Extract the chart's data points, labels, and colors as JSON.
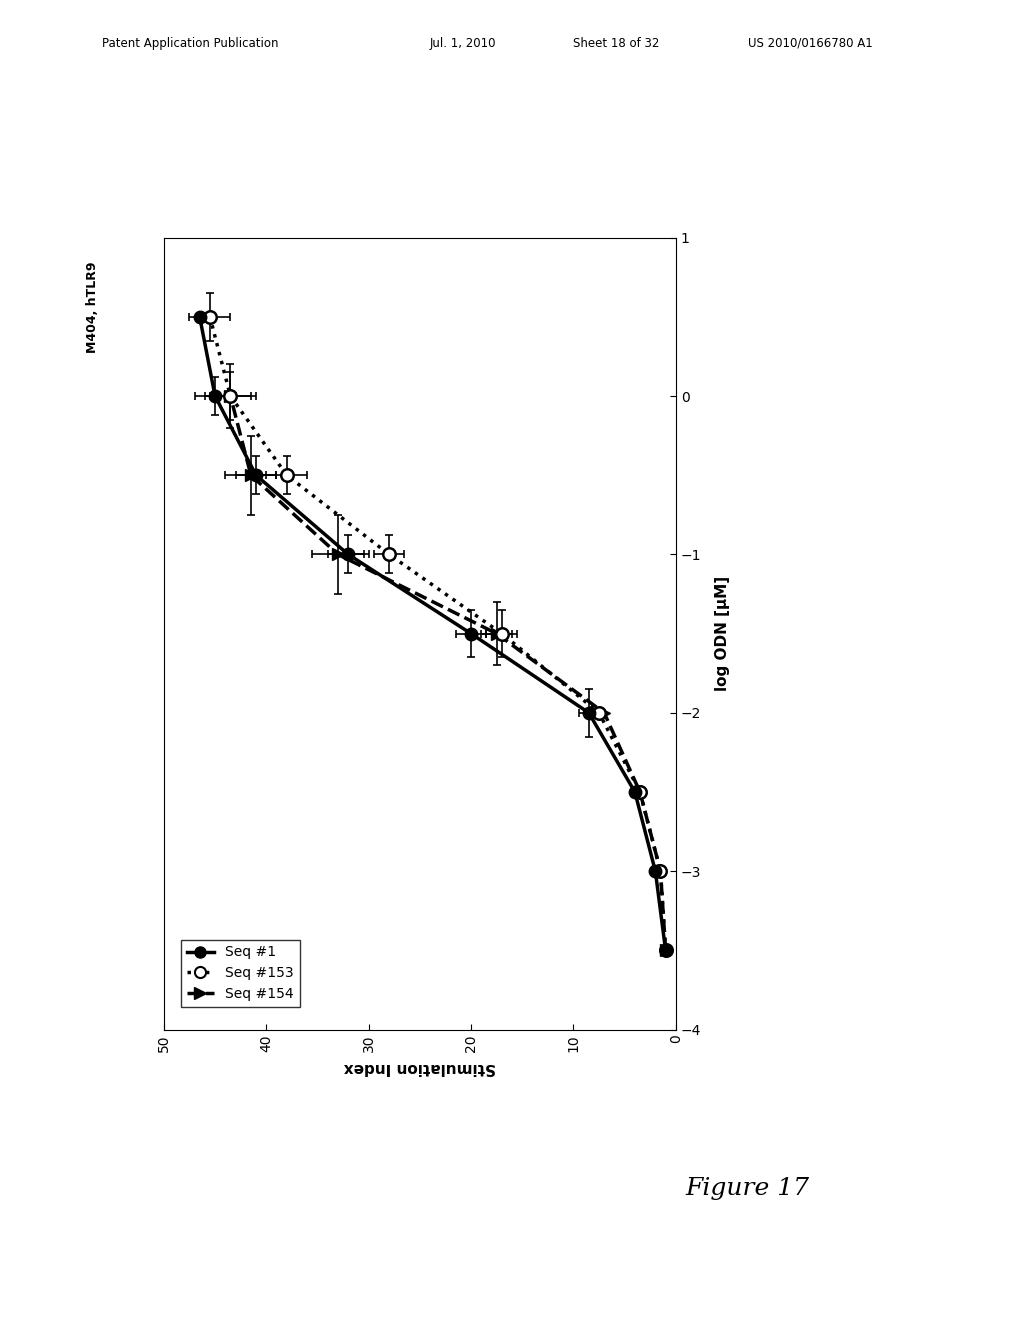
{
  "title": "M404, hTLR9",
  "xlabel_rotated": "log ODN [µM]",
  "ylabel_rotated": "Stimulation Index",
  "si_lim": [
    0,
    50
  ],
  "log_lim": [
    -4,
    1
  ],
  "si_ticks": [
    0,
    10,
    20,
    30,
    40,
    50
  ],
  "log_ticks": [
    -4,
    -3,
    -2,
    -1,
    0,
    1
  ],
  "seq1_x": [
    -3.5,
    -3.0,
    -2.5,
    -2.0,
    -1.5,
    -1.0,
    -0.5,
    0.0,
    0.5
  ],
  "seq1_y": [
    1.0,
    2.0,
    4.0,
    8.5,
    20.0,
    32.0,
    41.0,
    45.0,
    46.5
  ],
  "seq1_xerr_lo": [
    0.0,
    0.0,
    0.0,
    0.15,
    0.15,
    0.12,
    0.12,
    0.12,
    0.0
  ],
  "seq1_xerr_hi": [
    0.0,
    0.0,
    0.0,
    0.15,
    0.15,
    0.12,
    0.12,
    0.12,
    0.0
  ],
  "seq1_yerr": [
    0.0,
    0.0,
    0.0,
    1.0,
    1.5,
    2.0,
    2.0,
    2.0,
    0.0
  ],
  "seq153_x": [
    -3.5,
    -3.0,
    -2.5,
    -2.0,
    -1.5,
    -1.0,
    -0.5,
    0.0,
    0.5
  ],
  "seq153_y": [
    1.0,
    1.5,
    3.5,
    7.5,
    17.0,
    28.0,
    38.0,
    43.5,
    45.5
  ],
  "seq153_xerr_lo": [
    0.0,
    0.0,
    0.0,
    0.0,
    0.15,
    0.12,
    0.12,
    0.15,
    0.15
  ],
  "seq153_xerr_hi": [
    0.0,
    0.0,
    0.0,
    0.0,
    0.15,
    0.12,
    0.12,
    0.15,
    0.15
  ],
  "seq153_yerr": [
    0.0,
    0.0,
    0.0,
    0.0,
    1.5,
    1.5,
    2.0,
    2.0,
    2.0
  ],
  "seq154_x": [
    -3.5,
    -3.0,
    -2.5,
    -2.0,
    -1.5,
    -1.0,
    -0.5,
    0.0
  ],
  "seq154_y": [
    1.0,
    1.5,
    3.5,
    7.0,
    17.5,
    33.0,
    41.5,
    43.5
  ],
  "seq154_xerr_lo": [
    0.0,
    0.0,
    0.0,
    0.0,
    0.2,
    0.25,
    0.25,
    0.2
  ],
  "seq154_xerr_hi": [
    0.0,
    0.0,
    0.0,
    0.0,
    0.2,
    0.25,
    0.25,
    0.2
  ],
  "seq154_yerr": [
    0.0,
    0.0,
    0.0,
    0.0,
    1.5,
    2.5,
    2.5,
    2.5
  ],
  "figure_label": "Figure 17",
  "patent_text": "Patent Application Publication",
  "patent_date": "Jul. 1, 2010",
  "patent_sheet": "Sheet 18 of 32",
  "patent_num": "US 2010/0166780 A1"
}
